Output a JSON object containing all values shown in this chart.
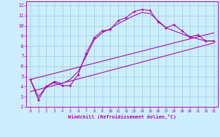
{
  "xlabel": "Windchill (Refroidissement éolien,°C)",
  "bg_color": "#cceeff",
  "line_color": "#aa00aa",
  "grid_color": "#99cccc",
  "xlim": [
    -0.5,
    23.5
  ],
  "ylim": [
    2,
    12.4
  ],
  "xticks": [
    0,
    1,
    2,
    3,
    4,
    5,
    6,
    7,
    8,
    9,
    10,
    11,
    12,
    13,
    14,
    15,
    16,
    17,
    18,
    19,
    20,
    21,
    22,
    23
  ],
  "yticks": [
    2,
    3,
    4,
    5,
    6,
    7,
    8,
    9,
    10,
    11,
    12
  ],
  "hours": [
    0,
    1,
    2,
    3,
    4,
    5,
    6,
    7,
    8,
    9,
    10,
    11,
    12,
    13,
    14,
    15,
    16,
    17,
    18,
    19,
    20,
    21,
    22,
    23
  ],
  "temp_line": [
    4.7,
    2.7,
    4.0,
    4.4,
    4.1,
    4.1,
    5.2,
    7.3,
    8.8,
    9.5,
    9.6,
    10.5,
    10.8,
    11.4,
    11.6,
    11.5,
    10.4,
    9.8,
    10.1,
    9.5,
    8.9,
    9.1,
    8.5,
    8.5
  ],
  "trend_line1_x": [
    0,
    23
  ],
  "trend_line1_y": [
    3.5,
    8.3
  ],
  "trend_line2_x": [
    0,
    23
  ],
  "trend_line2_y": [
    4.7,
    9.3
  ],
  "smooth_x": [
    0,
    1,
    2,
    3,
    4,
    5,
    6,
    7,
    8,
    9,
    10,
    11,
    12,
    13,
    14,
    15,
    16,
    17,
    18,
    19,
    20,
    21,
    22,
    23
  ],
  "smooth_y": [
    4.7,
    3.0,
    4.0,
    4.5,
    4.3,
    4.7,
    5.5,
    7.0,
    8.6,
    9.3,
    9.7,
    10.2,
    10.6,
    11.0,
    11.3,
    11.2,
    10.5,
    9.8,
    9.5,
    9.2,
    8.9,
    8.7,
    8.5,
    8.5
  ]
}
